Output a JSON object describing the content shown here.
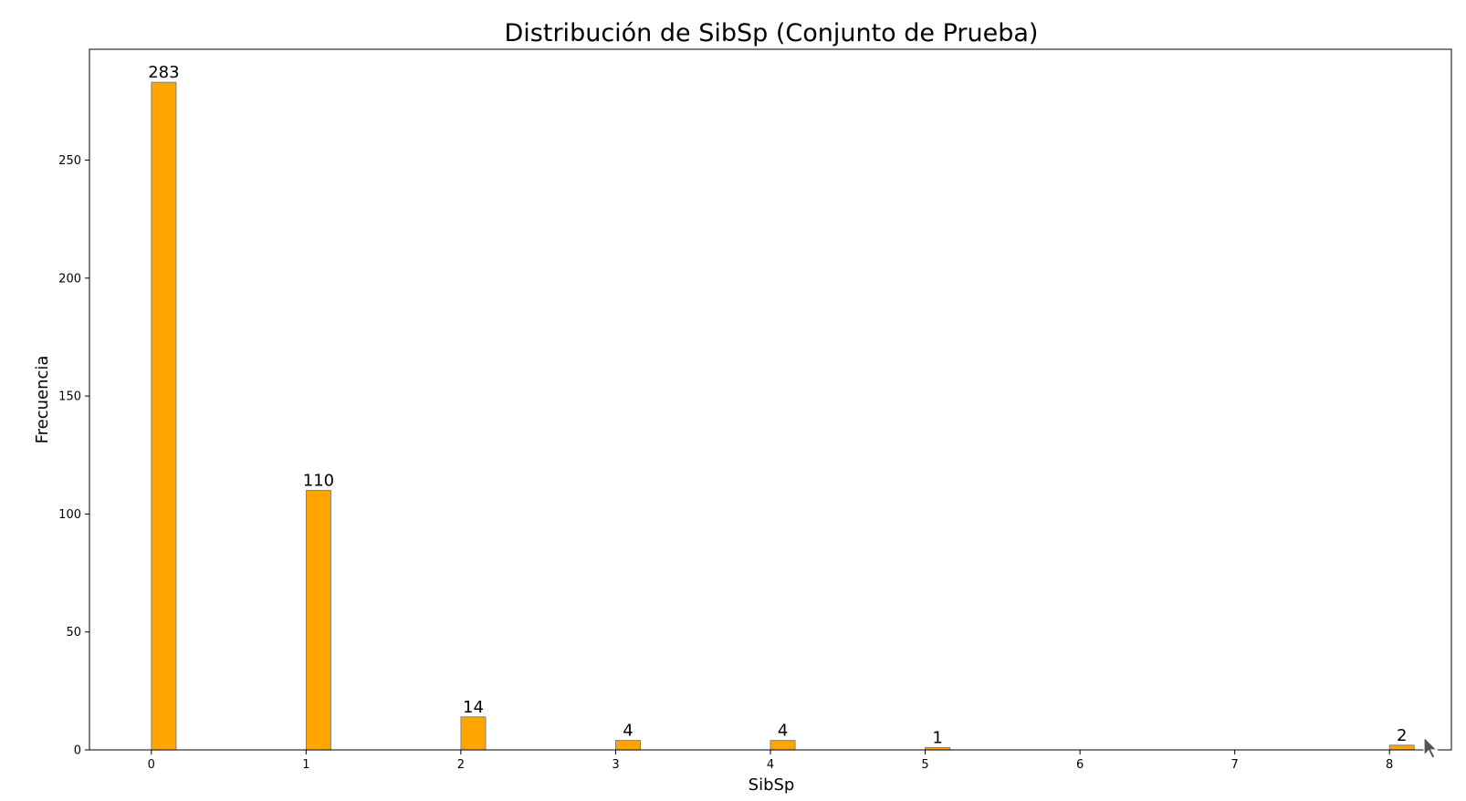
{
  "chart_data": {
    "type": "bar",
    "title": "Distribución de SibSp (Conjunto de Prueba)",
    "xlabel": "SibSp",
    "ylabel": "Frecuencia",
    "x": [
      0,
      1,
      2,
      3,
      4,
      5,
      8
    ],
    "values": [
      283,
      110,
      14,
      4,
      4,
      1,
      2
    ],
    "data_labels": [
      "283",
      "110",
      "14",
      "4",
      "4",
      "1",
      "2"
    ],
    "xticks": [
      0,
      1,
      2,
      3,
      4,
      5,
      6,
      7,
      8
    ],
    "xtick_labels": [
      "0",
      "1",
      "2",
      "3",
      "4",
      "5",
      "6",
      "7",
      "8"
    ],
    "yticks": [
      0,
      50,
      100,
      150,
      200,
      250
    ],
    "ytick_labels": [
      "0",
      "50",
      "100",
      "150",
      "200",
      "250"
    ],
    "xlim": [
      -0.4,
      8.4
    ],
    "ylim": [
      0,
      297
    ],
    "grid": false,
    "bar_color": "#FFA500",
    "bar_edge_color": "#808080"
  },
  "cursor": {
    "icon": "mouse-pointer-icon"
  }
}
